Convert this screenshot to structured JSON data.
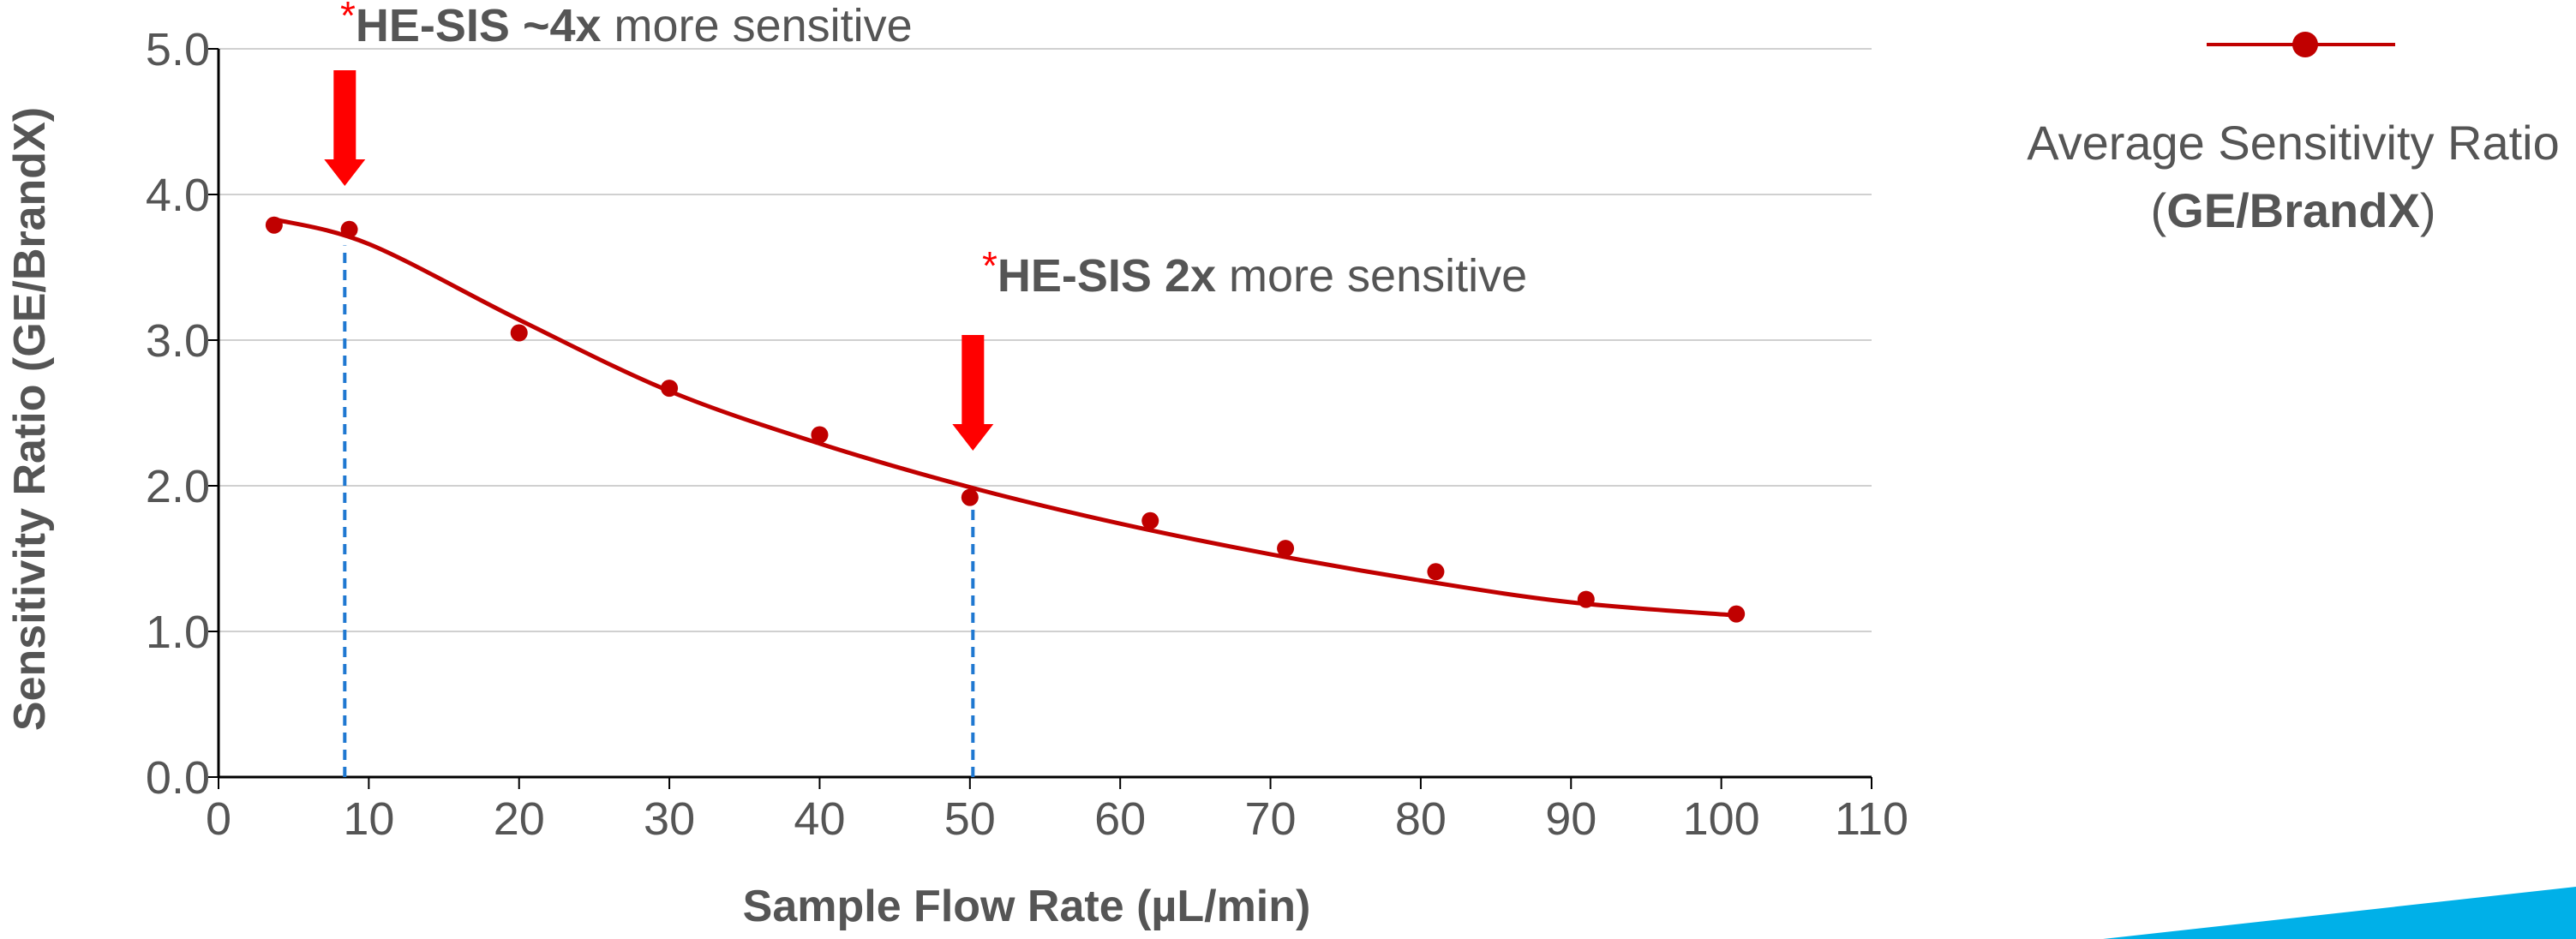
{
  "chart_data": {
    "type": "scatter",
    "x_label": "Sample Flow Rate (µL/min)",
    "y_label": "Sensitivity Ratio (GE/BrandX)",
    "x": [
      3.7,
      8.7,
      20,
      30,
      40,
      50,
      62,
      71,
      81,
      91,
      101
    ],
    "values": [
      3.79,
      3.76,
      3.05,
      2.67,
      2.35,
      1.92,
      1.76,
      1.57,
      1.41,
      1.22,
      1.12
    ],
    "color": "#c00000",
    "trend": {
      "x": [
        3.7,
        10,
        20,
        30,
        40,
        50,
        60,
        70,
        80,
        90,
        101
      ],
      "values": [
        3.83,
        3.66,
        3.14,
        2.65,
        2.29,
        1.99,
        1.74,
        1.53,
        1.35,
        1.2,
        1.11
      ],
      "color": "#c00000"
    },
    "markers": [
      {
        "x": 8.4,
        "y": 3.65
      },
      {
        "x": 50.2,
        "y": 1.95
      }
    ],
    "marker_color": "#1f78d1",
    "arrow_color": "#ff0000",
    "annotations": [
      [
        {
          "text": "*",
          "star": true
        },
        {
          "text": "HE-SIS ~4x",
          "bold": true
        },
        {
          "text": " more sensitive"
        }
      ],
      [
        {
          "text": "*",
          "star": true
        },
        {
          "text": "HE-SIS 2x",
          "bold": true
        },
        {
          "text": " more sensitive"
        }
      ]
    ],
    "legend": [
      [
        {
          "text": "Average Sensitivity Ratio"
        }
      ],
      [
        {
          "text": "("
        },
        {
          "text": "GE/BrandX",
          "bold": true
        },
        {
          "text": ")"
        }
      ]
    ],
    "xlim": [
      0,
      110
    ],
    "xticks": [
      0,
      10,
      20,
      30,
      40,
      50,
      60,
      70,
      80,
      90,
      100,
      110
    ],
    "ylim": [
      0,
      5
    ],
    "yticks": [
      {
        "value": 0,
        "label": "0.0"
      },
      {
        "value": 1,
        "label": "1.0"
      },
      {
        "value": 2,
        "label": "2.0"
      },
      {
        "value": 3,
        "label": "3.0"
      },
      {
        "value": 4,
        "label": "4.0"
      },
      {
        "value": 5,
        "label": "5.0"
      }
    ],
    "grid": true
  }
}
